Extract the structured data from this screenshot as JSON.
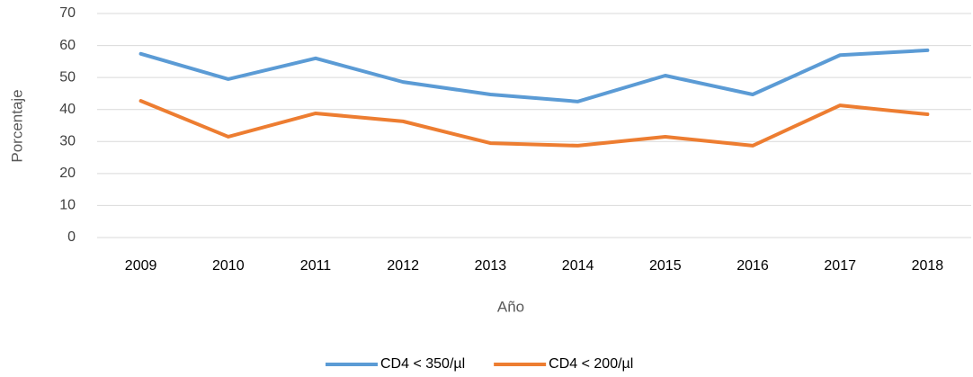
{
  "chart_data": {
    "type": "line",
    "x_label": "Año",
    "y_label": "Porcentaje",
    "categories": [
      "2009",
      "2010",
      "2011",
      "2012",
      "2013",
      "2014",
      "2015",
      "2016",
      "2017",
      "2018"
    ],
    "series": [
      {
        "name": "CD4 < 350/µl",
        "color": "#5b9bd5",
        "values": [
          57.4,
          49.5,
          56,
          48.6,
          44.7,
          42.5,
          50.6,
          44.7,
          57,
          58.5
        ]
      },
      {
        "name": "CD4 < 200/µl",
        "color": "#ed7d31",
        "values": [
          42.7,
          31.5,
          38.8,
          36.3,
          29.5,
          28.7,
          31.5,
          28.7,
          41.3,
          38.5
        ]
      }
    ],
    "ylim": [
      0,
      70
    ],
    "yticks": [
      0,
      10,
      20,
      30,
      40,
      50,
      60,
      70
    ],
    "grid": true,
    "legend": "bottom"
  }
}
